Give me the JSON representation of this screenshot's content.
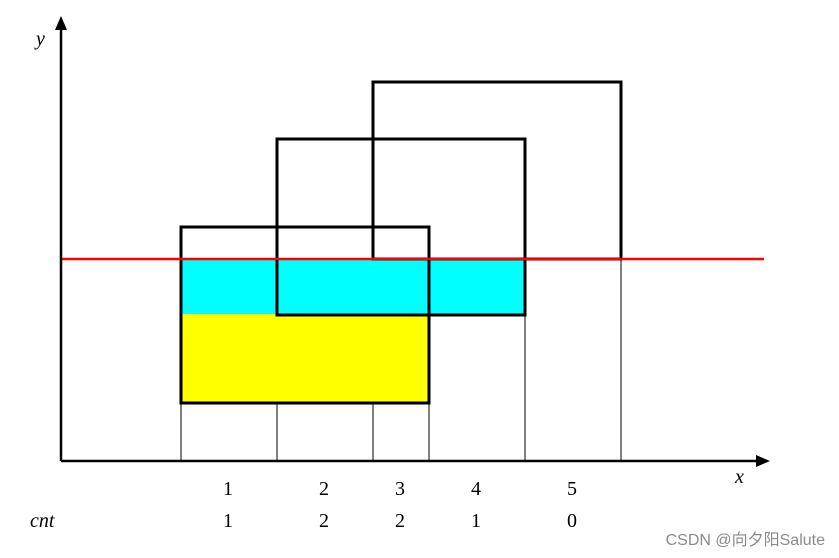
{
  "axes": {
    "x_label": "x",
    "y_label": "y"
  },
  "row_label": "cnt",
  "intervals": [
    {
      "index": "1",
      "cnt": "1"
    },
    {
      "index": "2",
      "cnt": "2"
    },
    {
      "index": "3",
      "cnt": "2"
    },
    {
      "index": "4",
      "cnt": "1"
    },
    {
      "index": "5",
      "cnt": "0"
    }
  ],
  "colors": {
    "axis": "#000000",
    "rect_stroke": "#000000",
    "scanline": "#ff0000",
    "region_top_fill": "#00ffff",
    "region_bottom_fill": "#ffff00"
  },
  "watermark": "CSDN @向夕阳Salute"
}
